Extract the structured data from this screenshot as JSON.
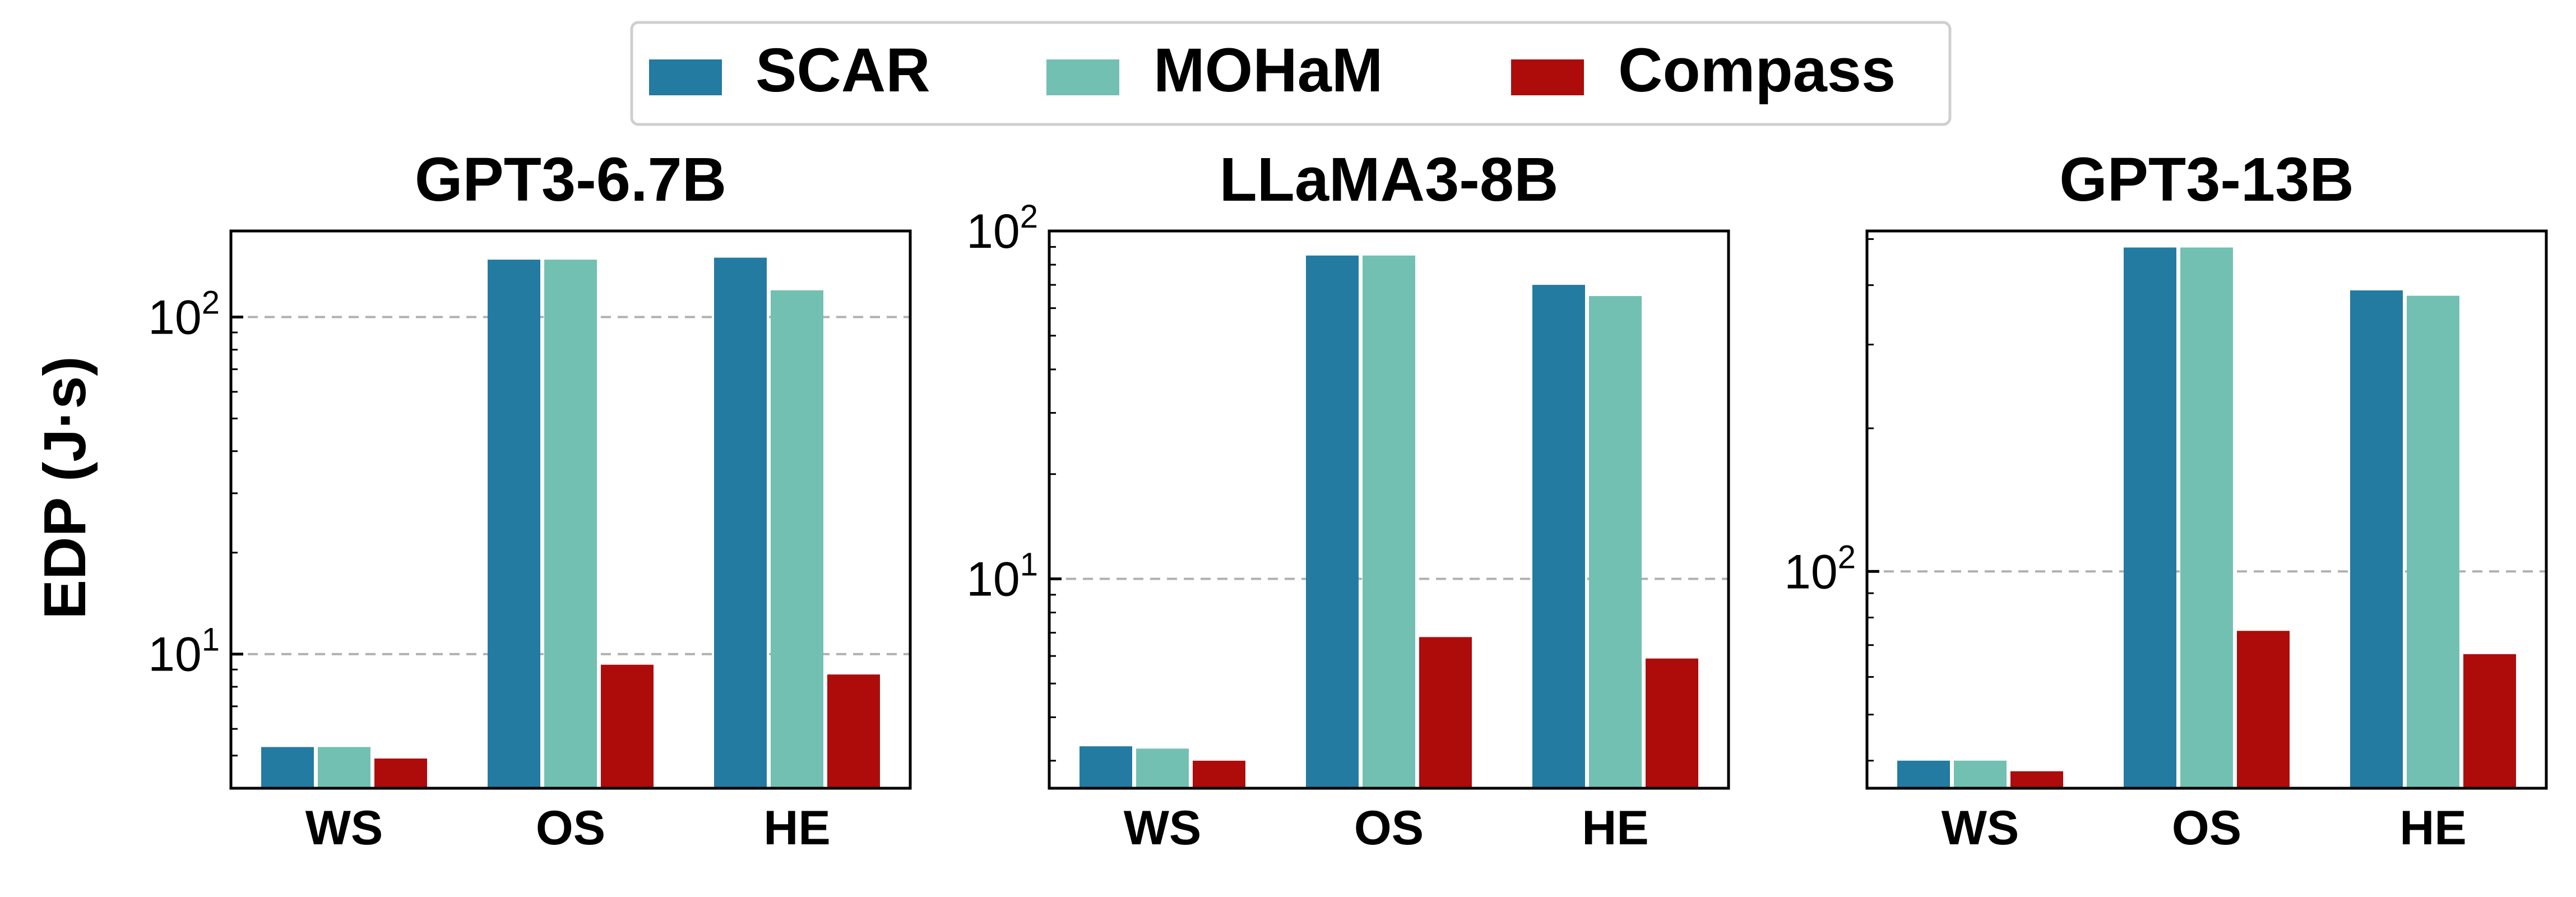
{
  "legend": {
    "entries": [
      {
        "label": "SCAR",
        "color": "#237ba1"
      },
      {
        "label": "MOHaM",
        "color": "#72c0b2"
      },
      {
        "label": "Compass",
        "color": "#ad0c0b"
      }
    ]
  },
  "ylabel": "EDP (J·s)",
  "chart_data": [
    {
      "type": "bar",
      "title": "GPT3-6.7B",
      "yscale": "log",
      "ylim": [
        4.0,
        180
      ],
      "ytick_labels": [
        {
          "base": "10",
          "exp": "1",
          "value": 10
        },
        {
          "base": "10",
          "exp": "2",
          "value": 100
        }
      ],
      "categories": [
        "WS",
        "OS",
        "HE"
      ],
      "series": [
        {
          "name": "SCAR",
          "values": [
            5.3,
            148,
            150
          ]
        },
        {
          "name": "MOHaM",
          "values": [
            5.3,
            148,
            120
          ]
        },
        {
          "name": "Compass",
          "values": [
            4.9,
            9.3,
            8.7
          ]
        }
      ]
    },
    {
      "type": "bar",
      "title": "LLaMA3-8B",
      "yscale": "log",
      "ylim": [
        2.5,
        100
      ],
      "ytick_labels": [
        {
          "base": "10",
          "exp": "1",
          "value": 10
        },
        {
          "base": "10",
          "exp": "2",
          "value": 100
        }
      ],
      "categories": [
        "WS",
        "OS",
        "HE"
      ],
      "series": [
        {
          "name": "SCAR",
          "values": [
            3.3,
            85,
            70
          ]
        },
        {
          "name": "MOHaM",
          "values": [
            3.25,
            85,
            65
          ]
        },
        {
          "name": "Compass",
          "values": [
            3.0,
            6.8,
            5.9
          ]
        }
      ]
    },
    {
      "type": "bar",
      "title": "GPT3-13B",
      "yscale": "log",
      "ylim": [
        35,
        520
      ],
      "ytick_labels": [
        {
          "base": "10",
          "exp": "2",
          "value": 100
        }
      ],
      "categories": [
        "WS",
        "OS",
        "HE"
      ],
      "series": [
        {
          "name": "SCAR",
          "values": [
            40,
            480,
            390
          ]
        },
        {
          "name": "MOHaM",
          "values": [
            40,
            480,
            380
          ]
        },
        {
          "name": "Compass",
          "values": [
            38,
            75,
            67
          ]
        }
      ]
    }
  ]
}
